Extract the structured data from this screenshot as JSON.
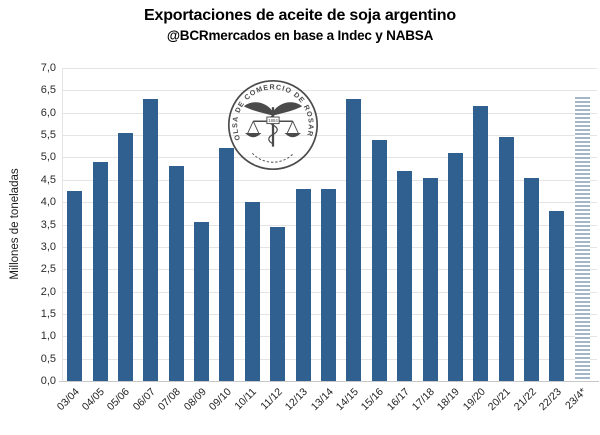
{
  "chart_data": {
    "type": "bar",
    "title": "Exportaciones de aceite de soja argentino",
    "subtitle": "@BCRmercados en base a Indec y NABSA",
    "xlabel": "",
    "ylabel": "Millones de toneladas",
    "ylim": [
      0,
      7
    ],
    "ytick_step": 0.5,
    "decimal_separator": ",",
    "grid": true,
    "legend": "none",
    "categories": [
      "03/04",
      "04/05",
      "05/06",
      "06/07",
      "07/08",
      "08/09",
      "09/10",
      "10/11",
      "11/12",
      "12/13",
      "13/14",
      "14/15",
      "15/16",
      "16/17",
      "17/18",
      "18/19",
      "19/20",
      "20/21",
      "21/22",
      "22/23",
      "23/4*"
    ],
    "values": [
      4.25,
      4.9,
      5.55,
      6.3,
      4.8,
      3.55,
      5.2,
      4.0,
      3.45,
      4.3,
      4.3,
      6.3,
      5.4,
      4.7,
      4.55,
      5.1,
      6.15,
      5.45,
      4.55,
      3.8,
      6.35
    ],
    "forecast_index": 20,
    "colors": {
      "bar": "#2f608f",
      "forecast_stripe": "#a3b7c8",
      "gridline": "#e4e4e4",
      "axis": "#c7c7c7",
      "text": "#1a1a1a"
    }
  },
  "logo": {
    "name": "Bolsa de Comercio de Rosario seal",
    "ring_text": "BOLSA DE COMERCIO DE ROSARIO",
    "year": "1884"
  }
}
